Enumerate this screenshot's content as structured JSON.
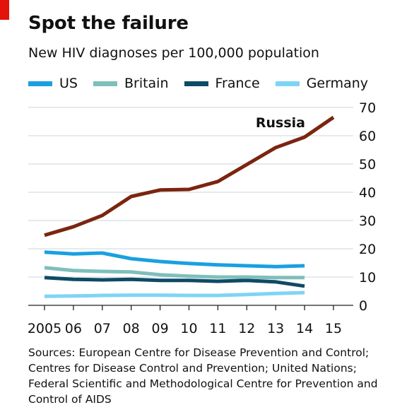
{
  "header": {
    "title": "Spot the failure",
    "subtitle": "New HIV diagnoses per 100,000 population"
  },
  "legend": [
    {
      "label": "US",
      "color": "#1aa0e0"
    },
    {
      "label": "Britain",
      "color": "#7fbfbb"
    },
    {
      "label": "France",
      "color": "#0e4a66"
    },
    {
      "label": "Germany",
      "color": "#7fd4f5"
    }
  ],
  "sources": "Sources: European Centre for Disease Prevention and Control; Centres for Disease Control and Prevention; United Nations; Federal Scientific and Methodological Centre for Prevention and Control of AIDS",
  "chart_data": {
    "type": "line",
    "title": "Spot the failure",
    "subtitle": "New HIV diagnoses per 100,000 population",
    "x": [
      2005,
      2006,
      2007,
      2008,
      2009,
      2010,
      2011,
      2012,
      2013,
      2014,
      2015
    ],
    "x_tick_labels": [
      "2005",
      "06",
      "07",
      "08",
      "09",
      "10",
      "11",
      "12",
      "13",
      "14",
      "15"
    ],
    "ylim": [
      0,
      70
    ],
    "y_ticks": [
      0,
      10,
      20,
      30,
      40,
      50,
      60,
      70
    ],
    "y_axis_side": "right",
    "grid": true,
    "legend_position": "top",
    "series": [
      {
        "name": "Russia",
        "color": "#7b2510",
        "label_on_chart": true,
        "values": [
          24.8,
          27.8,
          31.8,
          38.5,
          40.8,
          41,
          43.8,
          49.8,
          55.8,
          59.5,
          66.5
        ]
      },
      {
        "name": "US",
        "color": "#1aa0e0",
        "values": [
          18.8,
          18.2,
          18.5,
          16.5,
          15.5,
          14.8,
          14.3,
          14,
          13.7,
          14,
          null
        ]
      },
      {
        "name": "Britain",
        "color": "#7fbfbb",
        "values": [
          13.3,
          12.3,
          12,
          11.8,
          10.8,
          10.3,
          10,
          10,
          9.8,
          9.8,
          null
        ]
      },
      {
        "name": "France",
        "color": "#0e4a66",
        "values": [
          9.8,
          9.2,
          9,
          9.2,
          8.8,
          8.8,
          8.5,
          8.8,
          8.3,
          6.8,
          null
        ]
      },
      {
        "name": "Germany",
        "color": "#7fd4f5",
        "values": [
          3.2,
          3.3,
          3.5,
          3.6,
          3.6,
          3.5,
          3.5,
          3.8,
          4.2,
          4.5,
          null
        ]
      }
    ]
  }
}
